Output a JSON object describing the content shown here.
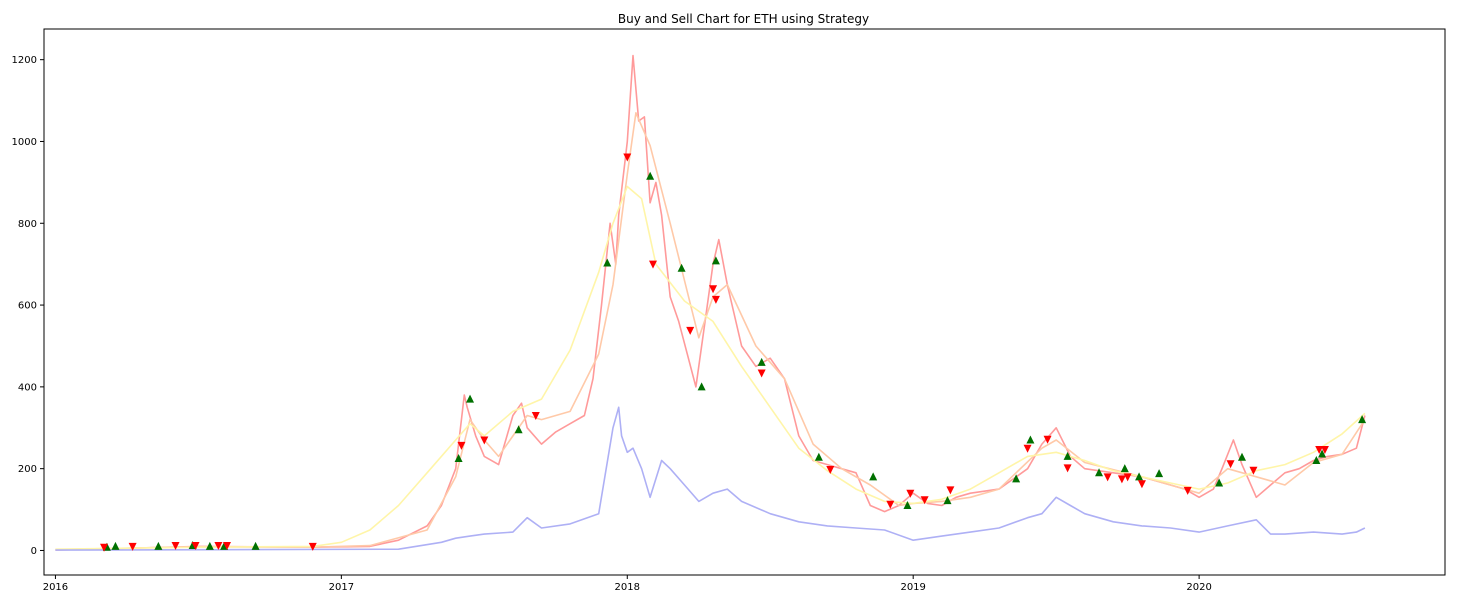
{
  "chart_data": {
    "type": "line",
    "title": "Buy and Sell Chart for ETH using Strategy",
    "xlabel": "",
    "ylabel": "",
    "xlim": [
      2015.96,
      2020.86
    ],
    "ylim": [
      -60,
      1275
    ],
    "grid": false,
    "x_tick_labels": [
      "2016",
      "2017",
      "2018",
      "2019",
      "2020"
    ],
    "x_tick_values": [
      2016,
      2017,
      2018,
      2019,
      2020
    ],
    "y_tick_labels": [
      "0",
      "200",
      "400",
      "600",
      "800",
      "1000",
      "1200"
    ],
    "y_tick_values": [
      0,
      200,
      400,
      600,
      800,
      1000,
      1200
    ],
    "series": [
      {
        "color": "#ff9a9a",
        "x": [
          2016.0,
          2016.5,
          2016.9,
          2017.1,
          2017.2,
          2017.3,
          2017.35,
          2017.4,
          2017.43,
          2017.44,
          2017.47,
          2017.5,
          2017.55,
          2017.6,
          2017.63,
          2017.65,
          2017.7,
          2017.75,
          2017.8,
          2017.85,
          2017.88,
          2017.91,
          2017.94,
          2017.96,
          2017.97,
          2018.0,
          2018.02,
          2018.04,
          2018.06,
          2018.08,
          2018.1,
          2018.12,
          2018.15,
          2018.18,
          2018.21,
          2018.24,
          2018.27,
          2018.3,
          2018.32,
          2018.35,
          2018.4,
          2018.45,
          2018.5,
          2018.55,
          2018.6,
          2018.65,
          2018.7,
          2018.8,
          2018.85,
          2018.9,
          2018.95,
          2019.0,
          2019.05,
          2019.1,
          2019.15,
          2019.2,
          2019.3,
          2019.4,
          2019.45,
          2019.5,
          2019.55,
          2019.6,
          2019.7,
          2019.8,
          2019.9,
          2019.95,
          2020.0,
          2020.05,
          2020.08,
          2020.12,
          2020.15,
          2020.2,
          2020.25,
          2020.3,
          2020.35,
          2020.4,
          2020.45,
          2020.5,
          2020.55,
          2020.58
        ],
        "y": [
          1,
          10,
          8,
          10,
          25,
          60,
          110,
          200,
          380,
          350,
          280,
          230,
          210,
          330,
          360,
          300,
          260,
          290,
          310,
          330,
          420,
          600,
          800,
          700,
          820,
          1000,
          1210,
          1050,
          1060,
          850,
          900,
          820,
          620,
          560,
          480,
          400,
          550,
          700,
          760,
          650,
          500,
          450,
          470,
          420,
          280,
          220,
          210,
          190,
          110,
          95,
          110,
          140,
          115,
          110,
          130,
          140,
          150,
          200,
          260,
          300,
          230,
          200,
          190,
          180,
          160,
          150,
          130,
          150,
          200,
          270,
          210,
          130,
          160,
          190,
          200,
          220,
          230,
          235,
          250,
          330
        ]
      },
      {
        "color": "#ffc9a8",
        "x": [
          2016.0,
          2016.5,
          2016.9,
          2017.1,
          2017.3,
          2017.4,
          2017.45,
          2017.5,
          2017.55,
          2017.65,
          2017.7,
          2017.8,
          2017.9,
          2017.95,
          2018.0,
          2018.03,
          2018.08,
          2018.15,
          2018.25,
          2018.3,
          2018.35,
          2018.45,
          2018.55,
          2018.65,
          2018.75,
          2018.85,
          2018.95,
          2019.0,
          2019.1,
          2019.2,
          2019.3,
          2019.45,
          2019.5,
          2019.6,
          2019.8,
          2019.9,
          2020.0,
          2020.1,
          2020.2,
          2020.3,
          2020.4,
          2020.5,
          2020.58
        ],
        "y": [
          2,
          9,
          8,
          12,
          50,
          180,
          320,
          270,
          230,
          330,
          320,
          340,
          480,
          650,
          920,
          1070,
          990,
          800,
          520,
          620,
          650,
          500,
          420,
          260,
          200,
          160,
          110,
          115,
          120,
          130,
          150,
          250,
          270,
          215,
          180,
          160,
          140,
          200,
          180,
          160,
          215,
          235,
          320
        ]
      },
      {
        "color": "#fff5a8",
        "x": [
          2016.0,
          2016.5,
          2016.9,
          2017.0,
          2017.1,
          2017.2,
          2017.3,
          2017.4,
          2017.45,
          2017.5,
          2017.6,
          2017.7,
          2017.8,
          2017.9,
          2017.95,
          2018.0,
          2018.05,
          2018.1,
          2018.2,
          2018.3,
          2018.4,
          2018.5,
          2018.6,
          2018.7,
          2018.8,
          2018.9,
          2019.0,
          2019.1,
          2019.2,
          2019.3,
          2019.4,
          2019.5,
          2019.6,
          2019.7,
          2019.8,
          2019.9,
          2020.0,
          2020.1,
          2020.2,
          2020.3,
          2020.4,
          2020.5,
          2020.58
        ],
        "y": [
          3,
          8,
          10,
          20,
          50,
          110,
          190,
          270,
          310,
          280,
          340,
          370,
          490,
          680,
          800,
          890,
          860,
          700,
          610,
          560,
          450,
          350,
          250,
          195,
          150,
          120,
          115,
          125,
          150,
          190,
          230,
          240,
          220,
          195,
          180,
          165,
          150,
          165,
          195,
          210,
          240,
          285,
          335
        ]
      },
      {
        "color": "#aeb0f5",
        "x": [
          2016.0,
          2017.2,
          2017.35,
          2017.4,
          2017.45,
          2017.5,
          2017.6,
          2017.65,
          2017.7,
          2017.8,
          2017.9,
          2017.95,
          2017.97,
          2017.98,
          2018.0,
          2018.02,
          2018.05,
          2018.08,
          2018.12,
          2018.15,
          2018.2,
          2018.25,
          2018.3,
          2018.35,
          2018.4,
          2018.5,
          2018.6,
          2018.7,
          2018.8,
          2018.9,
          2019.0,
          2019.1,
          2019.2,
          2019.3,
          2019.4,
          2019.45,
          2019.5,
          2019.55,
          2019.6,
          2019.7,
          2019.8,
          2019.9,
          2020.0,
          2020.1,
          2020.2,
          2020.25,
          2020.3,
          2020.4,
          2020.5,
          2020.55,
          2020.58
        ],
        "y": [
          1,
          3,
          20,
          30,
          35,
          40,
          45,
          80,
          55,
          65,
          90,
          300,
          350,
          280,
          240,
          250,
          200,
          130,
          220,
          200,
          160,
          120,
          140,
          150,
          120,
          90,
          70,
          60,
          55,
          50,
          25,
          35,
          45,
          55,
          80,
          90,
          130,
          110,
          90,
          70,
          60,
          55,
          45,
          60,
          75,
          40,
          40,
          45,
          40,
          45,
          55
        ]
      }
    ],
    "buy_markers": {
      "color": "#007000",
      "x": [
        2016.18,
        2016.21,
        2016.36,
        2016.48,
        2016.54,
        2016.59,
        2016.7,
        2017.41,
        2017.45,
        2017.62,
        2017.93,
        2018.08,
        2018.19,
        2018.26,
        2018.31,
        2018.47,
        2018.67,
        2018.86,
        2018.98,
        2019.12,
        2019.36,
        2019.41,
        2019.54,
        2019.65,
        2019.74,
        2019.79,
        2019.86,
        2020.07,
        2020.15,
        2020.41,
        2020.43,
        2020.57
      ],
      "y": [
        8,
        10,
        10,
        12,
        10,
        10,
        10,
        225,
        370,
        295,
        703,
        915,
        690,
        400,
        708,
        460,
        228,
        180,
        110,
        122,
        175,
        270,
        230,
        190,
        200,
        180,
        188,
        165,
        228,
        220,
        236,
        320
      ]
    },
    "sell_markers": {
      "color": "#ff0000",
      "x": [
        2016.17,
        2016.27,
        2016.42,
        2016.49,
        2016.57,
        2016.6,
        2016.9,
        2017.42,
        2017.5,
        2017.68,
        2018.0,
        2018.09,
        2018.22,
        2018.3,
        2018.31,
        2018.47,
        2018.71,
        2018.92,
        2018.99,
        2019.04,
        2019.13,
        2019.4,
        2019.47,
        2019.54,
        2019.68,
        2019.73,
        2019.75,
        2019.8,
        2019.96,
        2020.11,
        2020.19,
        2020.42,
        2020.44
      ],
      "y": [
        8,
        10,
        12,
        12,
        12,
        12,
        10,
        257,
        270,
        330,
        962,
        700,
        538,
        640,
        614,
        434,
        198,
        113,
        140,
        124,
        148,
        250,
        272,
        202,
        180,
        175,
        180,
        163,
        147,
        212,
        196,
        247,
        247
      ]
    }
  }
}
